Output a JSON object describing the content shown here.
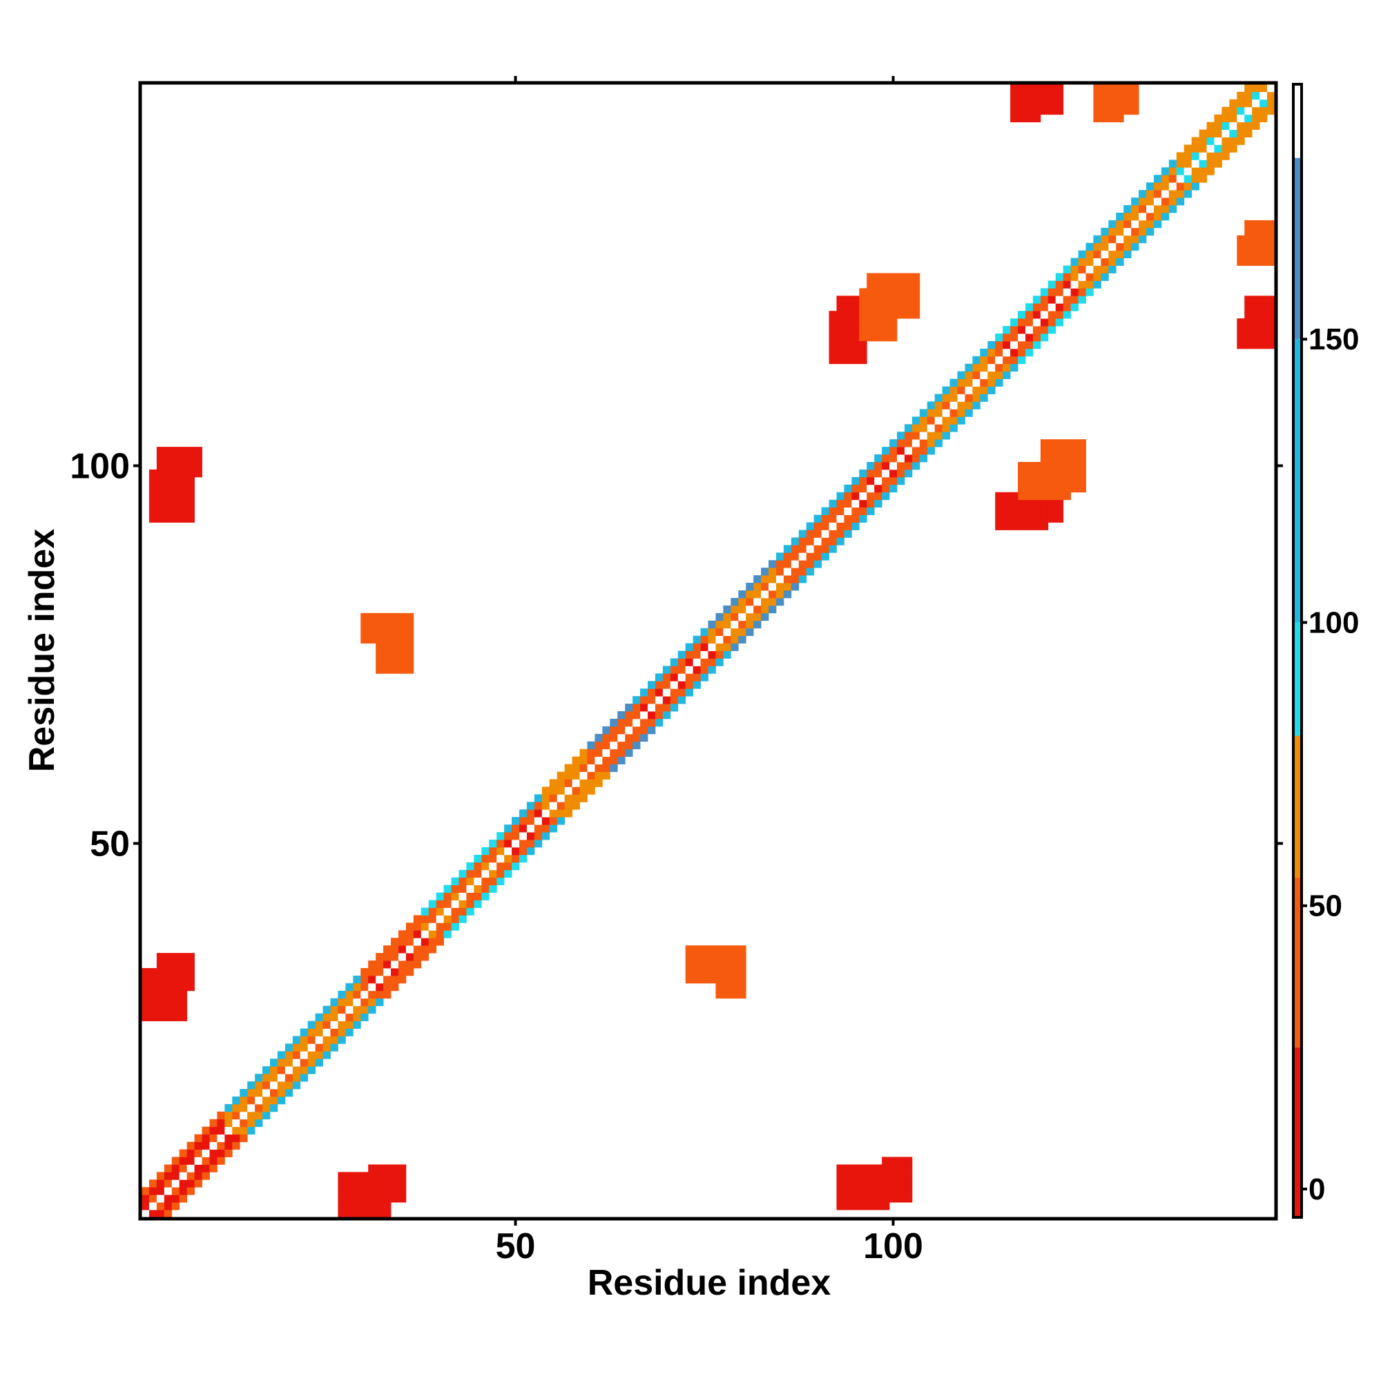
{
  "chart_data": {
    "type": "heatmap",
    "title": "",
    "xlabel": "Residue index",
    "ylabel": "Residue index",
    "xlim": [
      1,
      150
    ],
    "ylim": [
      1,
      150
    ],
    "x_ticks": [
      50,
      100
    ],
    "y_ticks": [
      50,
      100
    ],
    "colorbar": {
      "ticks": [
        0,
        50,
        100,
        150
      ],
      "range": [
        -5,
        195
      ],
      "bands": [
        {
          "from": -5,
          "to": 25,
          "color": "#e8150d"
        },
        {
          "from": 25,
          "to": 55,
          "color": "#f55a0f"
        },
        {
          "from": 55,
          "to": 80,
          "color": "#f08c00"
        },
        {
          "from": 80,
          "to": 100,
          "color": "#1edcec"
        },
        {
          "from": 100,
          "to": 150,
          "color": "#22b7e0"
        },
        {
          "from": 150,
          "to": 182,
          "color": "#4a8ec6"
        },
        {
          "from": 182,
          "to": 195,
          "color": "#ffffff"
        }
      ]
    },
    "grid": false,
    "description_note": "",
    "diagonal_segments": [
      {
        "from": 1,
        "to": 12,
        "main": 10,
        "side": 40
      },
      {
        "from": 12,
        "to": 30,
        "main": 45,
        "side": 100
      },
      {
        "from": 30,
        "to": 38,
        "main": 15,
        "side": 45
      },
      {
        "from": 38,
        "to": 49,
        "main": 40,
        "side": 95
      },
      {
        "from": 49,
        "to": 54,
        "main": 20,
        "side": 120
      },
      {
        "from": 54,
        "to": 60,
        "main": 45,
        "side": 55
      },
      {
        "from": 60,
        "to": 66,
        "main": 30,
        "side": 160
      },
      {
        "from": 66,
        "to": 76,
        "main": 20,
        "side": 140
      },
      {
        "from": 76,
        "to": 85,
        "main": 45,
        "side": 160
      },
      {
        "from": 85,
        "to": 94,
        "main": 35,
        "side": 110
      },
      {
        "from": 94,
        "to": 103,
        "main": 15,
        "side": 100
      },
      {
        "from": 103,
        "to": 114,
        "main": 45,
        "side": 120
      },
      {
        "from": 114,
        "to": 124,
        "main": 20,
        "side": 95
      },
      {
        "from": 124,
        "to": 138,
        "main": 50,
        "side": 100
      },
      {
        "from": 138,
        "to": 150,
        "main": 65,
        "side": 70
      }
    ],
    "blocks": [
      {
        "x": [
          3,
          8
        ],
        "y": [
          99,
          102
        ],
        "value": 10
      },
      {
        "x": [
          3,
          6
        ],
        "y": [
          96,
          98
        ],
        "value": 100
      },
      {
        "x": [
          3,
          7
        ],
        "y": [
          31,
          35
        ],
        "value": 15
      },
      {
        "x": [
          27,
          33
        ],
        "y": [
          1,
          6
        ],
        "value": 20
      },
      {
        "x": [
          30,
          36
        ],
        "y": [
          77,
          80
        ],
        "value": 45
      },
      {
        "x": [
          73,
          80
        ],
        "y": [
          32,
          36
        ],
        "value": 40
      },
      {
        "x": [
          93,
          99
        ],
        "y": [
          2,
          7
        ],
        "value": 12
      },
      {
        "x": [
          93,
          99
        ],
        "y": [
          117,
          122
        ],
        "value": 15
      },
      {
        "x": [
          97,
          103
        ],
        "y": [
          120,
          125
        ],
        "value": 45
      },
      {
        "x": [
          114,
          120
        ],
        "y": [
          92,
          96
        ],
        "value": 15
      },
      {
        "x": [
          117,
          123
        ],
        "y": [
          96,
          100
        ],
        "value": 50
      },
      {
        "x": [
          118,
          122
        ],
        "y": [
          147,
          150
        ],
        "value": 15
      },
      {
        "x": [
          128,
          132
        ],
        "y": [
          147,
          150
        ],
        "value": 50
      },
      {
        "x": [
          146,
          150
        ],
        "y": [
          116,
          119
        ],
        "value": 15
      },
      {
        "x": [
          146,
          150
        ],
        "y": [
          127,
          130
        ],
        "value": 30
      }
    ]
  }
}
